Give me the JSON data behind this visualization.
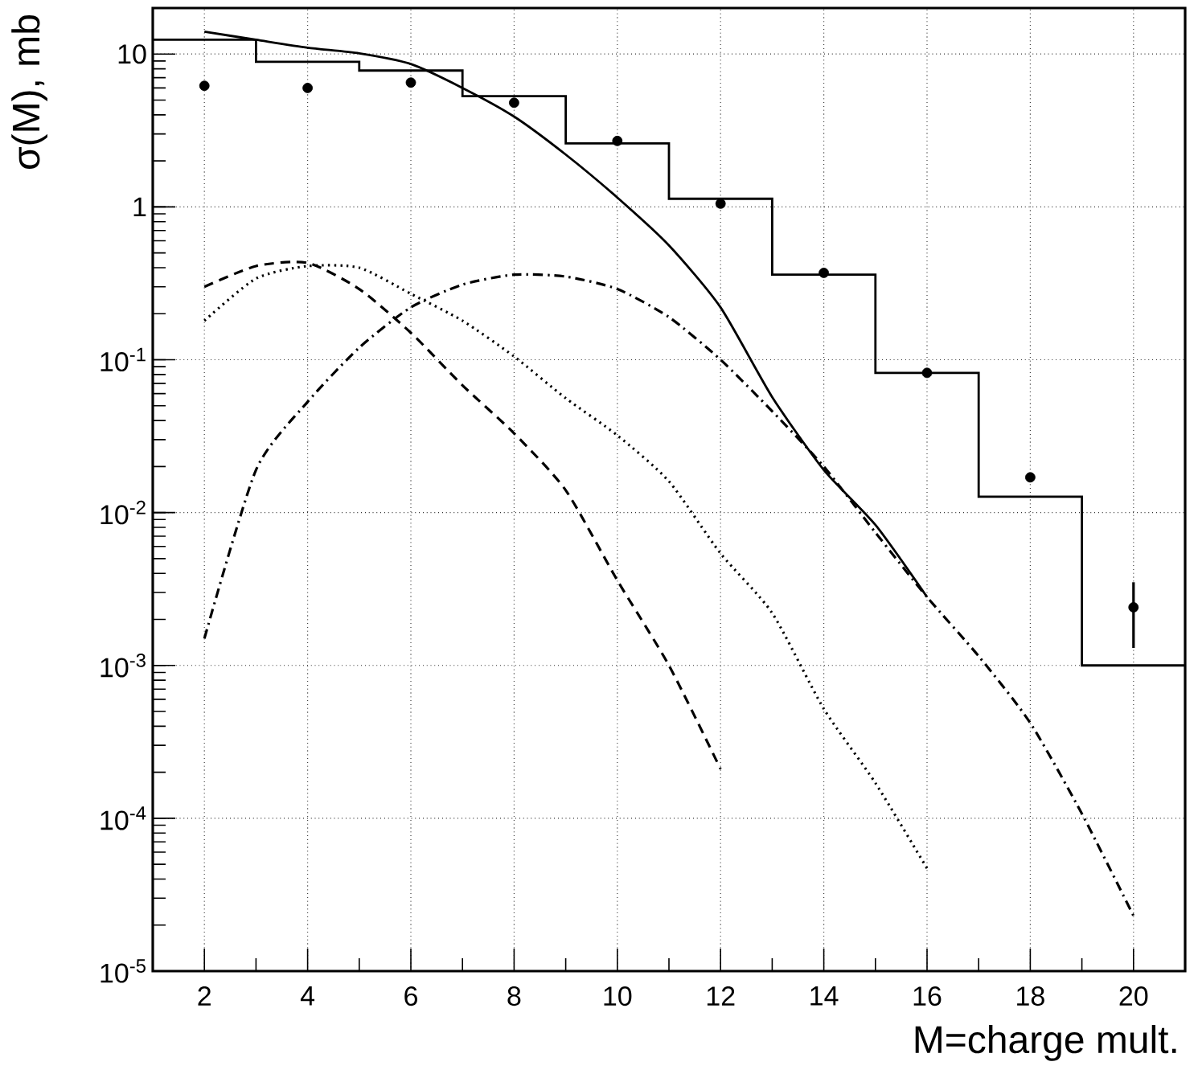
{
  "chart_data": {
    "type": "line",
    "xlabel": "M=charge mult.",
    "ylabel": "σ(M), mb",
    "log": "y",
    "grid": true,
    "xlim": [
      1,
      21
    ],
    "ylim": [
      1e-05,
      20
    ],
    "xticks": [
      2,
      4,
      6,
      8,
      10,
      12,
      14,
      16,
      18,
      20
    ],
    "yticks": [
      {
        "value": 1e-05,
        "label": "10$^{-5}$"
      },
      {
        "value": 0.0001,
        "label": "10$^{-4}$"
      },
      {
        "value": 0.001,
        "label": "10$^{-3}$"
      },
      {
        "value": 0.01,
        "label": "10$^{-2}$"
      },
      {
        "value": 0.1,
        "label": "10$^{-1}$"
      },
      1,
      10
    ],
    "series": [
      {
        "type": "histogram",
        "color": "#000000",
        "bins": [
          1,
          3,
          5,
          7,
          9,
          11,
          13,
          15,
          17,
          19,
          21
        ],
        "values": [
          12.4,
          8.9,
          7.8,
          5.3,
          2.6,
          1.13,
          0.36,
          0.082,
          0.0127,
          0.001
        ]
      },
      {
        "type": "scatter",
        "color": "#000000",
        "marker": "circle",
        "x": [
          2,
          4,
          6,
          8,
          10,
          12,
          14,
          16,
          18,
          20
        ],
        "values": [
          6.2,
          6.0,
          6.5,
          4.8,
          2.7,
          1.05,
          0.37,
          0.082,
          0.017,
          0.0024
        ],
        "errors": [
          null,
          null,
          null,
          null,
          null,
          null,
          null,
          null,
          null,
          [
            0.0013,
            0.0035
          ]
        ]
      },
      {
        "color": "#000000",
        "line_style": "solid",
        "x": [
          2,
          3,
          4,
          5,
          6,
          7,
          8,
          9,
          10,
          11,
          12,
          13,
          14,
          15,
          16
        ],
        "values": [
          14,
          12.4,
          11,
          10.1,
          8.6,
          6,
          3.9,
          2.2,
          1.15,
          0.56,
          0.22,
          0.057,
          0.019,
          0.0083,
          0.0028
        ]
      },
      {
        "color": "#000000",
        "line_style": "dashed",
        "x": [
          2,
          3,
          4,
          5,
          6,
          7,
          8,
          9,
          10,
          11,
          12
        ],
        "values": [
          0.3,
          0.41,
          0.43,
          0.29,
          0.15,
          0.068,
          0.033,
          0.014,
          0.0036,
          0.001,
          0.00021
        ]
      },
      {
        "color": "#000000",
        "line_style": "dotted",
        "x": [
          2,
          3,
          4,
          5,
          6,
          7,
          8,
          9,
          10,
          11,
          12,
          13,
          14,
          15,
          16
        ],
        "values": [
          0.18,
          0.34,
          0.41,
          0.4,
          0.27,
          0.18,
          0.105,
          0.056,
          0.032,
          0.016,
          0.0054,
          0.0022,
          0.00052,
          0.00017,
          4.7e-05
        ]
      },
      {
        "color": "#000000",
        "line_style": "dashdot",
        "x": [
          2,
          3,
          4,
          5,
          6,
          7,
          8,
          9,
          10,
          11,
          12,
          13,
          14,
          15,
          16,
          17,
          18,
          19,
          20
        ],
        "values": [
          0.0015,
          0.019,
          0.053,
          0.12,
          0.22,
          0.31,
          0.36,
          0.35,
          0.29,
          0.19,
          0.1,
          0.046,
          0.02,
          0.0074,
          0.0028,
          0.00115,
          0.00042,
          0.000107,
          2.3e-05
        ]
      }
    ]
  }
}
